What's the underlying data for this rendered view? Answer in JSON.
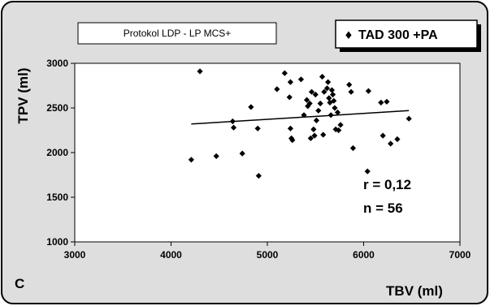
{
  "panel_letter": "C",
  "protocol_box": "Protokol LDP - LP MCS+",
  "legend": {
    "marker": "♦",
    "label": "TAD 300 +PA"
  },
  "colors": {
    "background": "#dedede",
    "plot_area": "#ffffff",
    "marker": "#000000",
    "trendline": "#000000"
  },
  "stats": {
    "r": "r = 0,12",
    "n": "n = 56"
  },
  "chart_data": {
    "type": "scatter",
    "xlabel": "TBV (ml)",
    "ylabel": "TPV (ml)",
    "xlim": [
      3000,
      7000
    ],
    "ylim": [
      1000,
      3000
    ],
    "xticks": [
      3000,
      4000,
      5000,
      6000,
      7000
    ],
    "yticks": [
      1000,
      1500,
      2000,
      2500,
      3000
    ],
    "grid": false,
    "legend_position": "top-right",
    "marker": "diamond",
    "series": [
      {
        "name": "TAD 300 +PA",
        "points": [
          [
            4210,
            1920
          ],
          [
            4300,
            2910
          ],
          [
            4470,
            1960
          ],
          [
            4640,
            2350
          ],
          [
            4650,
            2280
          ],
          [
            4740,
            1990
          ],
          [
            4830,
            2510
          ],
          [
            4900,
            2270
          ],
          [
            4910,
            1740
          ],
          [
            5100,
            2710
          ],
          [
            5180,
            2890
          ],
          [
            5230,
            2620
          ],
          [
            5240,
            2790
          ],
          [
            5240,
            2270
          ],
          [
            5250,
            2160
          ],
          [
            5260,
            2140
          ],
          [
            5350,
            2820
          ],
          [
            5380,
            2420
          ],
          [
            5410,
            2590
          ],
          [
            5420,
            2520
          ],
          [
            5440,
            2550
          ],
          [
            5450,
            2160
          ],
          [
            5460,
            2680
          ],
          [
            5480,
            2260
          ],
          [
            5490,
            2190
          ],
          [
            5500,
            2650
          ],
          [
            5510,
            2360
          ],
          [
            5530,
            2470
          ],
          [
            5550,
            2550
          ],
          [
            5570,
            2850
          ],
          [
            5580,
            2200
          ],
          [
            5590,
            2680
          ],
          [
            5620,
            2720
          ],
          [
            5630,
            2790
          ],
          [
            5640,
            2610
          ],
          [
            5650,
            2560
          ],
          [
            5660,
            2420
          ],
          [
            5670,
            2700
          ],
          [
            5680,
            2650
          ],
          [
            5690,
            2580
          ],
          [
            5700,
            2500
          ],
          [
            5710,
            2260
          ],
          [
            5730,
            2450
          ],
          [
            5740,
            2250
          ],
          [
            5760,
            2310
          ],
          [
            5850,
            2760
          ],
          [
            5870,
            2680
          ],
          [
            5890,
            2050
          ],
          [
            6040,
            1790
          ],
          [
            6050,
            2690
          ],
          [
            6180,
            2560
          ],
          [
            6200,
            2190
          ],
          [
            6240,
            2570
          ],
          [
            6280,
            2100
          ],
          [
            6350,
            2150
          ],
          [
            6470,
            2380
          ]
        ]
      }
    ],
    "trendline": {
      "x": [
        4210,
        6470
      ],
      "y": [
        2320,
        2470
      ]
    }
  }
}
